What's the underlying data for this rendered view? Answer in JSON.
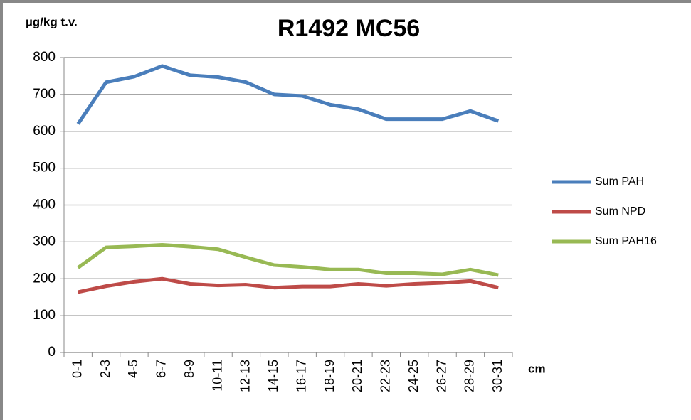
{
  "chart_data": {
    "type": "line",
    "title": "R1492 MC56",
    "y_label": "µg/kg t.v.",
    "x_label": "cm",
    "categories": [
      "0-1",
      "2-3",
      "4-5",
      "6-7",
      "8-9",
      "10-11",
      "12-13",
      "14-15",
      "16-17",
      "18-19",
      "20-21",
      "22-23",
      "24-25",
      "26-27",
      "28-29",
      "30-31"
    ],
    "series": [
      {
        "name": "Sum PAH",
        "color": "#4a7ebb",
        "values": [
          620,
          733,
          748,
          777,
          752,
          747,
          733,
          700,
          696,
          672,
          660,
          633,
          633,
          633,
          655,
          628
        ]
      },
      {
        "name": "Sum NPD",
        "color": "#be4b48",
        "values": [
          164,
          180,
          192,
          200,
          186,
          182,
          184,
          176,
          179,
          179,
          186,
          181,
          186,
          189,
          194,
          176
        ]
      },
      {
        "name": "Sum PAH16",
        "color": "#98b954",
        "values": [
          230,
          285,
          288,
          292,
          287,
          280,
          258,
          237,
          232,
          225,
          225,
          215,
          215,
          212,
          225,
          210
        ]
      }
    ],
    "ylim": [
      0,
      800
    ],
    "yticks": [
      0,
      100,
      200,
      300,
      400,
      500,
      600,
      700,
      800
    ],
    "grid": true,
    "legend": "right"
  }
}
